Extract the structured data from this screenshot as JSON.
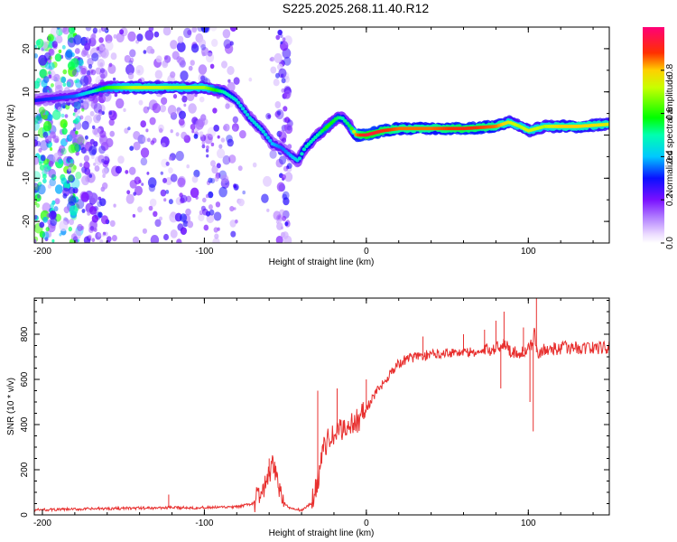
{
  "title": "S225.2025.268.11.40.R12",
  "chart_data": [
    {
      "type": "heatmap",
      "name": "spectrogram",
      "xlabel": "Height of straight line (km)",
      "ylabel": "Frequency (Hz)",
      "xlim": [
        -205,
        150
      ],
      "ylim": [
        -25,
        25
      ],
      "xticks": [
        -200,
        -100,
        0,
        100
      ],
      "yticks": [
        -20,
        -10,
        0,
        10,
        20
      ],
      "colorbar": {
        "label": "Normalized spectral amplitude",
        "range": [
          0,
          1
        ],
        "ticks": [
          0.0,
          0.2,
          0.4,
          0.6,
          0.8
        ],
        "tick_labels": [
          "0.0",
          "0.2",
          "0.4",
          "0.6",
          "0.8"
        ],
        "colormap": [
          "#ffffff",
          "#e8d6ff",
          "#a56bff",
          "#6a00ff",
          "#0010ff",
          "#00ffff",
          "#00ff00",
          "#ffff00",
          "#ff0000",
          "#ff007a"
        ]
      },
      "ridge_track": {
        "x": [
          -205,
          -180,
          -160,
          -140,
          -120,
          -100,
          -88,
          -80,
          -72,
          -64,
          -58,
          -52,
          -46,
          -42,
          -38,
          -30,
          -24,
          -18,
          -15,
          -10,
          -6,
          -2,
          0,
          10,
          20,
          40,
          60,
          80,
          88,
          95,
          100,
          110,
          120,
          130,
          150
        ],
        "y": [
          8,
          9,
          11,
          11,
          11,
          11,
          10,
          8,
          4,
          1,
          -2,
          -3,
          -5,
          -6,
          -3,
          0,
          2,
          4,
          4,
          2,
          0,
          0,
          0,
          1,
          1.5,
          1.5,
          1.5,
          2,
          3,
          2,
          1,
          2,
          2,
          2,
          2.5
        ],
        "amplitude": [
          0.3,
          0.35,
          0.6,
          0.75,
          0.7,
          0.7,
          0.5,
          0.45,
          0.45,
          0.45,
          0.4,
          0.35,
          0.4,
          0.45,
          0.5,
          0.5,
          0.6,
          0.55,
          0.5,
          0.55,
          0.85,
          0.9,
          0.95,
          0.9,
          0.85,
          0.85,
          0.9,
          0.85,
          0.75,
          0.7,
          0.75,
          0.7,
          0.8,
          0.8,
          0.75
        ]
      }
    },
    {
      "type": "line",
      "name": "snr",
      "xlabel": "Height of straight line (km)",
      "ylabel": "SNR (10 * v/v)",
      "xlim": [
        -205,
        150
      ],
      "ylim": [
        0,
        960
      ],
      "xticks": [
        -200,
        -100,
        0,
        100
      ],
      "yticks": [
        0,
        200,
        400,
        600,
        800
      ],
      "line_color": "#e8302f",
      "series": [
        {
          "name": "SNR",
          "x": [
            -205,
            -180,
            -160,
            -140,
            -120,
            -100,
            -80,
            -70,
            -62,
            -58,
            -55,
            -52,
            -48,
            -40,
            -34,
            -30,
            -28,
            -25,
            -20,
            -15,
            -10,
            -5,
            0,
            5,
            10,
            15,
            20,
            25,
            30,
            40,
            50,
            60,
            70,
            80,
            85,
            90,
            95,
            100,
            103,
            104,
            105,
            110,
            120,
            130,
            140,
            150
          ],
          "y": [
            22,
            25,
            28,
            30,
            32,
            32,
            35,
            50,
            130,
            210,
            170,
            70,
            30,
            20,
            50,
            150,
            250,
            320,
            350,
            380,
            400,
            420,
            470,
            530,
            580,
            630,
            670,
            690,
            700,
            710,
            720,
            720,
            720,
            740,
            760,
            720,
            720,
            730,
            760,
            820,
            720,
            730,
            740,
            740,
            740,
            740
          ]
        }
      ],
      "spikes": {
        "x": [
          -122,
          -60,
          -30,
          -18,
          0,
          35,
          60,
          73,
          80,
          83,
          85,
          97,
          101,
          103,
          105
        ],
        "y": [
          90,
          250,
          550,
          560,
          600,
          790,
          800,
          820,
          860,
          560,
          900,
          830,
          500,
          370,
          960
        ]
      }
    }
  ]
}
